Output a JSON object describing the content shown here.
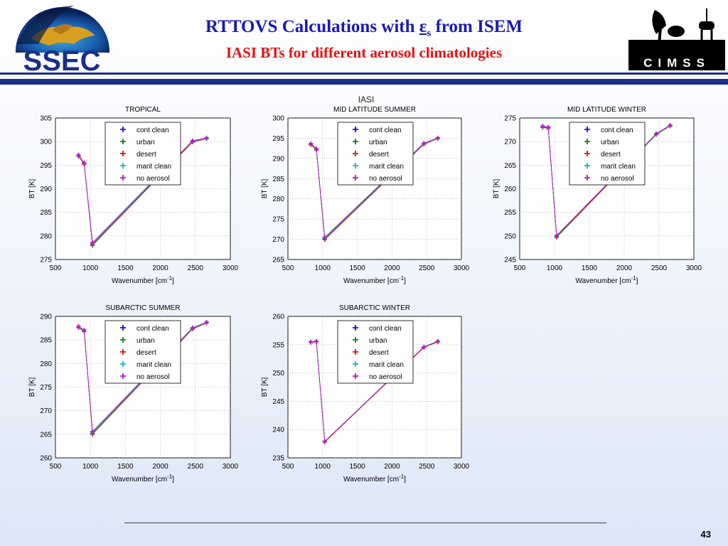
{
  "header": {
    "title_prefix": "RTTOVS Calculations with ",
    "title_symbol": "ε",
    "title_symbol_sub": "s",
    "title_suffix": " from ISEM",
    "subtitle": "IASI BTs for different aerosol climatologies",
    "ssec_logo_text": "SSEC",
    "cimss_logo_text": "CIMSS"
  },
  "figure_label": "IASI",
  "page_number": "43",
  "colors": {
    "title": "#1a1ab8",
    "subtitle": "#e81010",
    "rule": "#1a2f8a",
    "cont_clean": "#1010e0",
    "urban": "#0a8a0a",
    "desert": "#e01010",
    "marit_clean": "#10b8c8",
    "no_aerosol": "#c010c8"
  },
  "chart_data": [
    {
      "type": "line",
      "title": "TROPICAL",
      "xlabel": "Wavenumber [cm",
      "xlabel_sup": "-1",
      "xlabel_end": "]",
      "ylabel": "BT [K]",
      "xlim": [
        500,
        3000
      ],
      "ylim": [
        275,
        305
      ],
      "xticks": [
        500,
        1000,
        1500,
        2000,
        2500,
        3000
      ],
      "yticks": [
        275,
        280,
        285,
        290,
        295,
        300,
        305
      ],
      "grid": true,
      "legend": "top-center",
      "x": [
        830,
        910,
        1030,
        2460,
        2660
      ],
      "series": [
        {
          "name": "cont clean",
          "values": [
            297.1,
            295.4,
            278.3,
            300.1,
            300.7
          ]
        },
        {
          "name": "urban",
          "values": [
            297.0,
            295.3,
            278.1,
            300.0,
            300.6
          ]
        },
        {
          "name": "desert",
          "values": [
            296.9,
            295.2,
            278.0,
            299.9,
            300.6
          ]
        },
        {
          "name": "marit clean",
          "values": [
            297.1,
            295.4,
            278.4,
            300.1,
            300.7
          ]
        },
        {
          "name": "no aerosol",
          "values": [
            297.2,
            295.5,
            278.6,
            300.2,
            300.8
          ]
        }
      ]
    },
    {
      "type": "line",
      "title": "MID LATITUDE SUMMER",
      "xlabel": "Wavenumber [cm",
      "xlabel_sup": "-1",
      "xlabel_end": "]",
      "ylabel": "BT [K]",
      "xlim": [
        500,
        3000
      ],
      "ylim": [
        265,
        300
      ],
      "xticks": [
        500,
        1000,
        1500,
        2000,
        2500,
        3000
      ],
      "yticks": [
        265,
        270,
        275,
        280,
        285,
        290,
        295,
        300
      ],
      "grid": true,
      "legend": "top-center",
      "x": [
        830,
        910,
        1030,
        2460,
        2660
      ],
      "series": [
        {
          "name": "cont clean",
          "values": [
            293.6,
            292.3,
            270.2,
            293.7,
            295.0
          ]
        },
        {
          "name": "urban",
          "values": [
            293.5,
            292.2,
            270.1,
            293.6,
            294.9
          ]
        },
        {
          "name": "desert",
          "values": [
            293.4,
            292.1,
            269.9,
            293.5,
            294.9
          ]
        },
        {
          "name": "marit clean",
          "values": [
            293.6,
            292.3,
            270.3,
            293.7,
            295.0
          ]
        },
        {
          "name": "no aerosol",
          "values": [
            293.7,
            292.4,
            270.5,
            293.8,
            295.1
          ]
        }
      ]
    },
    {
      "type": "line",
      "title": "MID LATITUDE WINTER",
      "xlabel": "Wavenumber [cm",
      "xlabel_sup": "-1",
      "xlabel_end": "]",
      "ylabel": "BT [K]",
      "xlim": [
        500,
        3000
      ],
      "ylim": [
        245,
        275
      ],
      "xticks": [
        500,
        1000,
        1500,
        2000,
        2500,
        3000
      ],
      "yticks": [
        245,
        250,
        255,
        260,
        265,
        270,
        275
      ],
      "grid": true,
      "legend": "top-center",
      "x": [
        830,
        910,
        1030,
        2460,
        2660
      ],
      "series": [
        {
          "name": "cont clean",
          "values": [
            273.2,
            273.0,
            249.9,
            271.6,
            273.4
          ]
        },
        {
          "name": "urban",
          "values": [
            273.1,
            272.9,
            249.8,
            271.5,
            273.3
          ]
        },
        {
          "name": "desert",
          "values": [
            273.0,
            272.8,
            249.7,
            271.5,
            273.3
          ]
        },
        {
          "name": "marit clean",
          "values": [
            273.2,
            273.0,
            250.0,
            271.6,
            273.4
          ]
        },
        {
          "name": "no aerosol",
          "values": [
            273.3,
            273.1,
            250.1,
            271.7,
            273.5
          ]
        }
      ]
    },
    {
      "type": "line",
      "title": "SUBARCTIC SUMMER",
      "xlabel": "Wavenumber [cm",
      "xlabel_sup": "-1",
      "xlabel_end": "]",
      "ylabel": "BT [K]",
      "xlim": [
        500,
        3000
      ],
      "ylim": [
        260,
        290
      ],
      "xticks": [
        500,
        1000,
        1500,
        2000,
        2500,
        3000
      ],
      "yticks": [
        260,
        265,
        270,
        275,
        280,
        285,
        290
      ],
      "grid": true,
      "legend": "top-center",
      "x": [
        830,
        910,
        1030,
        2460,
        2660
      ],
      "series": [
        {
          "name": "cont clean",
          "values": [
            287.8,
            287.0,
            265.3,
            287.5,
            288.7
          ]
        },
        {
          "name": "urban",
          "values": [
            287.7,
            286.9,
            265.2,
            287.4,
            288.6
          ]
        },
        {
          "name": "desert",
          "values": [
            287.6,
            286.8,
            265.0,
            287.3,
            288.6
          ]
        },
        {
          "name": "marit clean",
          "values": [
            287.8,
            287.0,
            265.4,
            287.5,
            288.7
          ]
        },
        {
          "name": "no aerosol",
          "values": [
            287.9,
            287.1,
            265.6,
            287.6,
            288.8
          ]
        }
      ]
    },
    {
      "type": "line",
      "title": "SUBARCTIC WINTER",
      "xlabel": "Wavenumber [cm",
      "xlabel_sup": "-1",
      "xlabel_end": "]",
      "ylabel": "BT [K]",
      "xlim": [
        500,
        3000
      ],
      "ylim": [
        235,
        260
      ],
      "xticks": [
        500,
        1000,
        1500,
        2000,
        2500,
        3000
      ],
      "yticks": [
        235,
        240,
        245,
        250,
        255,
        260
      ],
      "grid": true,
      "legend": "top-center",
      "x": [
        830,
        910,
        1030,
        2460,
        2660
      ],
      "series": [
        {
          "name": "cont clean",
          "values": [
            255.5,
            255.6,
            237.9,
            254.6,
            255.6
          ]
        },
        {
          "name": "urban",
          "values": [
            255.5,
            255.6,
            237.9,
            254.6,
            255.6
          ]
        },
        {
          "name": "desert",
          "values": [
            255.4,
            255.5,
            237.8,
            254.5,
            255.5
          ]
        },
        {
          "name": "marit clean",
          "values": [
            255.5,
            255.6,
            237.9,
            254.6,
            255.6
          ]
        },
        {
          "name": "no aerosol",
          "values": [
            255.5,
            255.6,
            237.9,
            254.6,
            255.6
          ]
        }
      ]
    }
  ]
}
